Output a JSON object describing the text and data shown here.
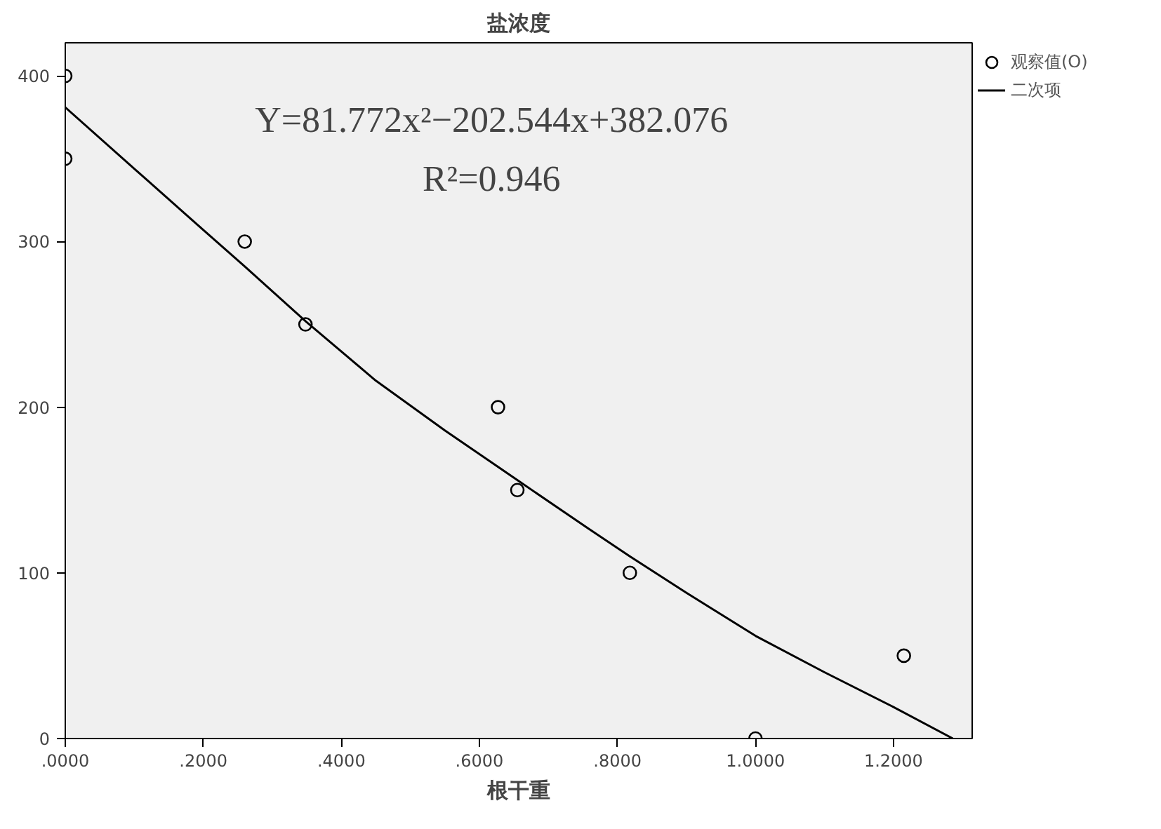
{
  "chart_data": {
    "type": "scatter",
    "title": "盐浓度",
    "xlabel": "根干重",
    "annotations": [
      "Y=81.772x²−202.544x+382.076",
      "R²=0.946"
    ],
    "xlim": [
      0,
      1.314
    ],
    "ylim": [
      0,
      420
    ],
    "xticks": [
      {
        "value": 0,
        "label": ".0000"
      },
      {
        "value": 0.2,
        "label": ".2000"
      },
      {
        "value": 0.4,
        "label": ".4000"
      },
      {
        "value": 0.6,
        "label": ".6000"
      },
      {
        "value": 0.8,
        "label": ".8000"
      },
      {
        "value": 1.0,
        "label": "1.0000"
      },
      {
        "value": 1.2,
        "label": "1.2000"
      }
    ],
    "yticks": [
      0,
      100,
      200,
      300,
      400
    ],
    "grid": false,
    "legend": "top right",
    "series": [
      {
        "name": "观察值(O)",
        "marker": "circle",
        "color": "#000000",
        "x": [
          0,
          0,
          0.26,
          0.348,
          0.627,
          0.655,
          0.818,
          1.0,
          1.215
        ],
        "values": [
          400,
          350,
          300,
          250,
          200,
          150,
          100,
          0,
          50
        ]
      },
      {
        "name": "二次项",
        "type": "line",
        "line_style": "solid",
        "marker": "none",
        "color": "#000000",
        "x": [
          0,
          0.1,
          0.2,
          0.26,
          0.348,
          0.45,
          0.55,
          0.655,
          0.757,
          0.818,
          0.9,
          1.0,
          1.1,
          1.2,
          1.286
        ],
        "values": [
          381,
          344,
          307,
          285,
          252,
          216,
          186,
          156,
          127,
          110,
          88,
          62,
          40,
          19,
          0
        ]
      }
    ]
  }
}
